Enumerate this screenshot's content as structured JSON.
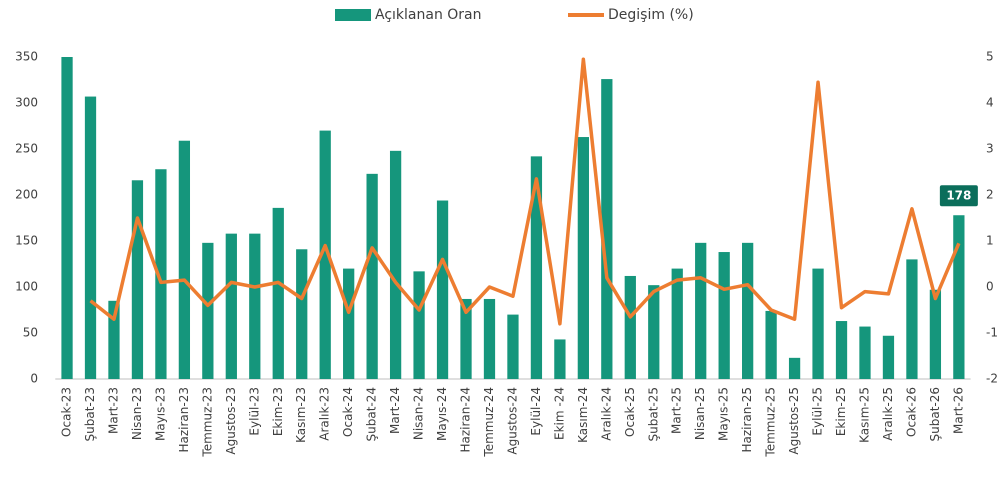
{
  "chart_data": {
    "type": "bar_line",
    "categories": [
      "Ocak-23",
      "Şubat-23",
      "Mart-23",
      "Nisan-23",
      "Mayıs-23",
      "Haziran-23",
      "Temmuz-23",
      "Agustos-23",
      "Eylül-23",
      "Ekim-23",
      "Kasım-23",
      "Aralık-23",
      "Ocak-24",
      "Şubat-24",
      "Mart-24",
      "Nisan-24",
      "Mayıs-24",
      "Haziran-24",
      "Temmuz-24",
      "Agustos-24",
      "Eylül-24",
      "Ekim -24",
      "Kasım-24",
      "Aralık-24",
      "Ocak-25",
      "Şubat-25",
      "Mart-25",
      "Nisan-25",
      "Mayıs-25",
      "Haziran-25",
      "Temmuz-25",
      "Agustos-25",
      "Eylül-25",
      "Ekim-25",
      "Kasım-25",
      "Aralık-25",
      "Ocak-26",
      "Şubat-26",
      "Mart-26"
    ],
    "series": [
      {
        "name": "Açıklanan Oran",
        "color": "#15967c",
        "type": "bar",
        "values": [
          350,
          307,
          85,
          216,
          228,
          259,
          148,
          158,
          158,
          186,
          141,
          270,
          120,
          223,
          248,
          117,
          194,
          87,
          87,
          70,
          242,
          43,
          263,
          326,
          112,
          102,
          120,
          148,
          138,
          148,
          74,
          23,
          120,
          63,
          57,
          47,
          130,
          97,
          178
        ],
        "value_labels": [
          null,
          null,
          null,
          null,
          null,
          null,
          null,
          null,
          null,
          null,
          null,
          null,
          null,
          null,
          null,
          null,
          null,
          null,
          null,
          null,
          null,
          null,
          null,
          null,
          null,
          null,
          null,
          null,
          null,
          null,
          null,
          null,
          null,
          null,
          null,
          null,
          null,
          null,
          "178"
        ]
      },
      {
        "name": "Degişim (%)",
        "color": "#ed7d31",
        "type": "line",
        "axis": "y2",
        "values": [
          null,
          -0.3,
          -0.7,
          1.5,
          0.1,
          0.15,
          -0.4,
          0.1,
          0,
          0.1,
          -0.25,
          0.9,
          -0.55,
          0.85,
          0.1,
          -0.5,
          0.6,
          -0.55,
          0,
          -0.2,
          2.35,
          -0.8,
          4.95,
          0.2,
          -0.65,
          -0.1,
          0.15,
          0.2,
          -0.05,
          0.05,
          -0.5,
          -0.7,
          4.45,
          -0.45,
          -0.1,
          -0.15,
          1.7,
          -0.25,
          0.95
        ]
      }
    ],
    "ylim": [
      0,
      350
    ],
    "yticks": [
      0,
      50,
      100,
      150,
      200,
      250,
      300,
      350
    ],
    "y2lim": [
      -2,
      5
    ],
    "y2ticks": [
      -2,
      -1,
      0,
      1,
      2,
      3,
      4,
      5
    ],
    "legend": "top",
    "grid": false
  }
}
